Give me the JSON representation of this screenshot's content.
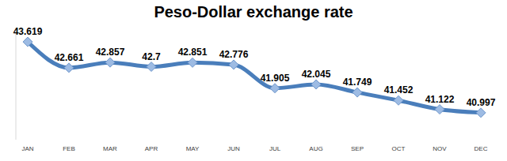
{
  "chart_data": {
    "type": "line",
    "title": "Peso-Dollar exchange rate",
    "categories": [
      "JAN",
      "FEB",
      "MAR",
      "APR",
      "MAY",
      "JUN",
      "JUL",
      "AUG",
      "SEP",
      "OCT",
      "NOV",
      "DEC"
    ],
    "values": [
      43.619,
      42.661,
      42.857,
      42.7,
      42.851,
      42.776,
      41.905,
      42.045,
      41.749,
      41.452,
      41.122,
      40.997
    ],
    "color": "#4a7ebb",
    "marker": "diamond",
    "ylim": [
      40,
      44
    ],
    "data_labels": true,
    "tick_labels": "x",
    "grid": false
  }
}
